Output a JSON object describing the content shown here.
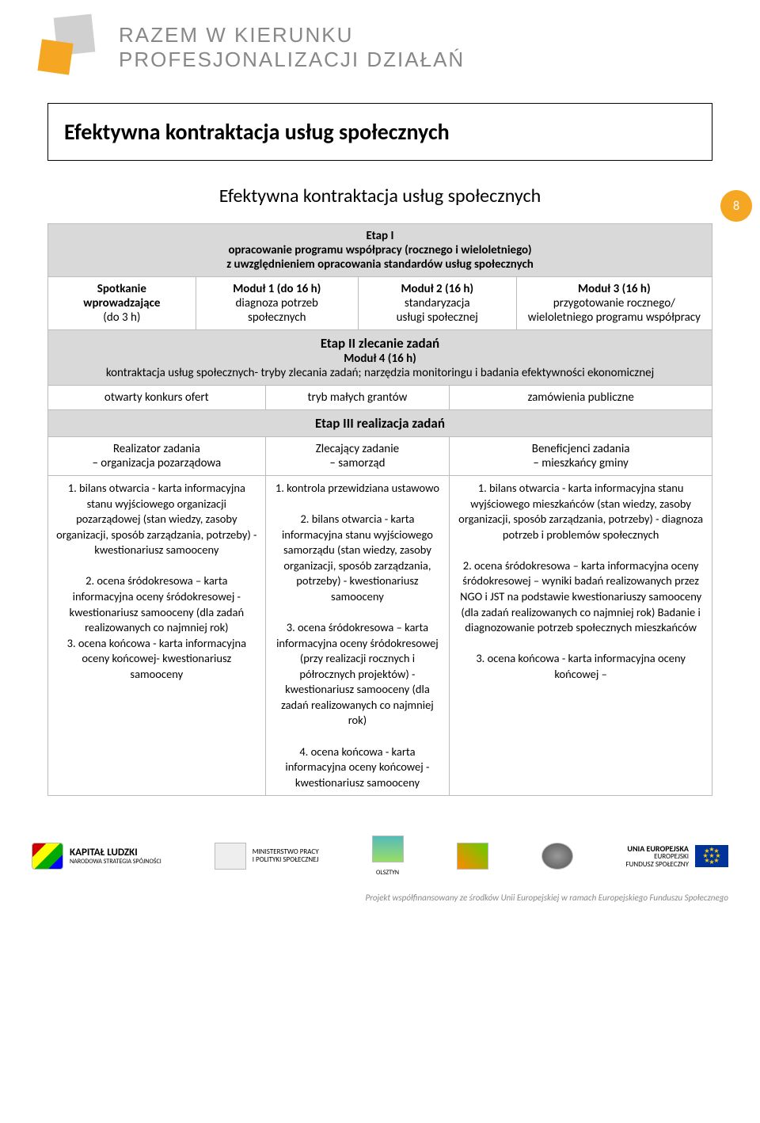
{
  "header": {
    "line1": "RAZEM W KIERUNKU",
    "line2": "PROFESJONALIZACJI DZIAŁAŃ"
  },
  "page_number": "8",
  "title": "Efektywna kontraktacja usług społecznych",
  "subtitle": "Efektywna kontraktacja usług społecznych",
  "etap1": {
    "heading": "Etap I",
    "desc": "opracowanie programu współpracy (rocznego i wieloletniego)\nz uwzględnieniem opracowania standardów usług społecznych"
  },
  "modules_row": {
    "c1_l1": "Spotkanie",
    "c1_l2": "wprowadzające",
    "c1_l3": "(do 3 h)",
    "c2_l1": "Moduł 1 (do 16 h)",
    "c2_l2": "diagnoza potrzeb",
    "c2_l3": "społecznych",
    "c3_l1": "Moduł 2 (16 h)",
    "c3_l2": "standaryzacja",
    "c3_l3": "usługi społecznej",
    "c4_l1": "Moduł 3 (16 h)",
    "c4_l2": "przygotowanie rocznego/",
    "c4_l3": "wieloletniego programu współpracy"
  },
  "etap2": {
    "heading": "Etap II zlecanie zadań",
    "sub": "Moduł 4 (16 h)",
    "desc": "kontraktacja usług społecznych- tryby zlecania zadań; narzędzia monitoringu i badania efektywności ekonomicznej"
  },
  "row_tryb": {
    "c1": "otwarty konkurs ofert",
    "c2": "tryb małych grantów",
    "c3": "zamówienia publiczne"
  },
  "etap3_heading": "Etap III realizacja zadań",
  "row_roles": {
    "c1_l1": "Realizator zadania",
    "c1_l2": "– organizacja pozarządowa",
    "c2_l1": "Zlecający zadanie",
    "c2_l2": "– samorząd",
    "c3_l1": "Beneficjenci zadania",
    "c3_l2": "– mieszkańcy gminy"
  },
  "details": {
    "col1": "1. bilans otwarcia - karta informacyjna stanu wyjściowego organizacji pozarządowej (stan wiedzy, zasoby organizacji, sposób zarządzania, potrzeby) - kwestionariusz samooceny\n\n2. ocena śródokresowa – karta informacyjna oceny śródokresowej - kwestionariusz samooceny (dla zadań realizowanych co najmniej rok)\n3. ocena końcowa - karta informacyjna oceny końcowej- kwestionariusz samooceny",
    "col2": "1. kontrola przewidziana ustawowo\n\n2. bilans otwarcia - karta informacyjna stanu wyjściowego samorządu (stan wiedzy, zasoby organizacji, sposób zarządzania, potrzeby) - kwestionariusz samooceny\n\n3. ocena śródokresowa – karta informacyjna oceny śródokresowej (przy realizacji rocznych i półrocznych projektów) - kwestionariusz samooceny (dla zadań realizowanych co najmniej rok)\n\n4. ocena końcowa - karta informacyjna oceny końcowej - kwestionariusz samooceny",
    "col3": "1. bilans otwarcia - karta informacyjna stanu wyjściowego mieszkańców (stan wiedzy, zasoby organizacji, sposób zarządzania, potrzeby) - diagnoza potrzeb i problemów społecznych\n\n2. ocena śródokresowa – karta informacyjna oceny śródokresowej – wyniki badań realizowanych przez NGO i JST na podstawie kwestionariuszy samooceny (dla zadań realizowanych co najmniej rok) Badanie i diagnozowanie potrzeb społecznych mieszkańców\n\n3. ocena końcowa - karta informacyjna oceny końcowej –"
  },
  "footer": {
    "kapital_l1": "KAPITAŁ LUDZKI",
    "kapital_l2": "NARODOWA STRATEGIA SPÓJNOŚCI",
    "min_l1": "MINISTERSTWO PRACY",
    "min_l2": "I POLITYKI SPOŁECZNEJ",
    "olsztyn": "OLSZTYN",
    "eu_l1": "UNIA EUROPEJSKA",
    "eu_l2": "EUROPEJSKI",
    "eu_l3": "FUNDUSZ SPOŁECZNY",
    "caption": "Projekt współfinansowany ze środków Unii Europejskiej w ramach Europejskiego Funduszu Społecznego"
  }
}
